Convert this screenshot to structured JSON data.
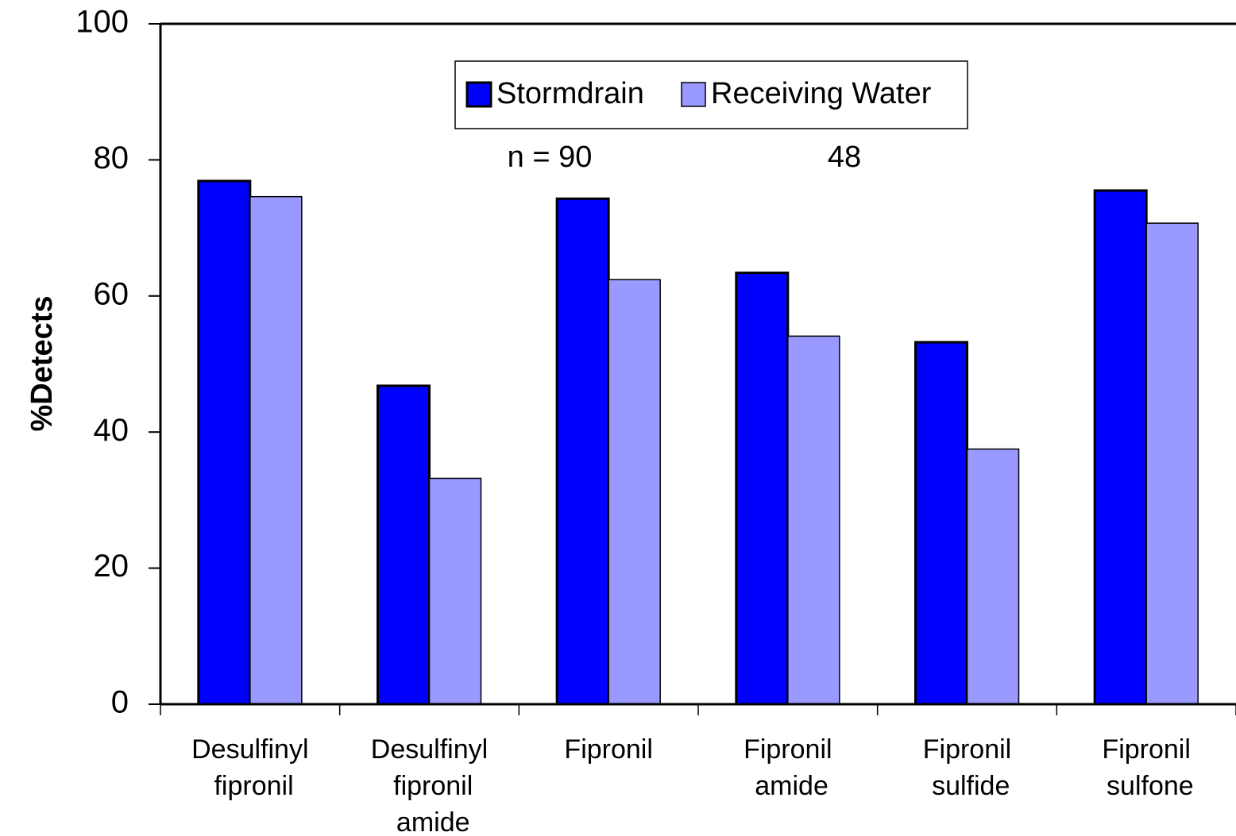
{
  "chart_data": {
    "type": "bar",
    "y_label": "%Detects",
    "categories": [
      "Desulfinyl fipronil",
      "Desulfinyl fipronil amide",
      "Fipronil",
      "Fipronil amide",
      "Fipronil sulfide",
      "Fipronil sulfone"
    ],
    "series": [
      {
        "name": "Stormdrain",
        "color": "#0000ff",
        "values": [
          76.9,
          46.8,
          74.3,
          63.4,
          53.2,
          75.5
        ]
      },
      {
        "name": "Receiving Water",
        "color": "#9999ff",
        "values": [
          74.6,
          33.2,
          62.4,
          54.1,
          37.5,
          70.7
        ]
      }
    ],
    "annotations": [
      "n = 90",
      "48"
    ],
    "ylim": [
      0,
      100
    ],
    "yticks": [
      0,
      20,
      40,
      60,
      80,
      100
    ],
    "legend": "top"
  }
}
